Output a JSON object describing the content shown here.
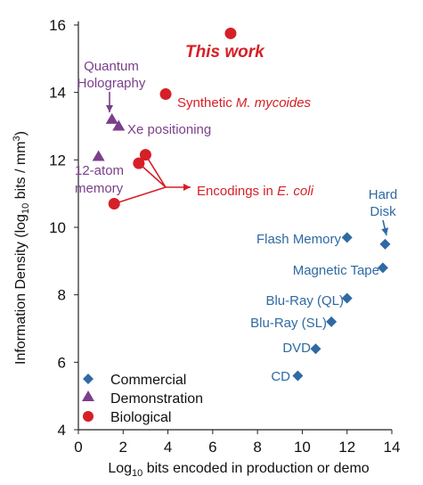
{
  "colors": {
    "commercial": "#2f6aa3",
    "demonstration": "#7b3f8c",
    "biological": "#d61f26"
  },
  "chart_data": {
    "type": "scatter",
    "title": "",
    "xlabel_parts": [
      "Log",
      "10",
      " bits encoded in production or demo"
    ],
    "ylabel_parts": [
      "Information Density (log",
      "10",
      " bits / mm",
      "3",
      ")"
    ],
    "xlim": [
      0,
      14
    ],
    "ylim": [
      4,
      16
    ],
    "xticks": [
      0,
      2,
      4,
      6,
      8,
      10,
      12,
      14
    ],
    "yticks": [
      4,
      6,
      8,
      10,
      12,
      14,
      16
    ],
    "grid": false,
    "legend_position": "bottom-left",
    "legend": [
      {
        "name": "Commercial",
        "marker": "diamond"
      },
      {
        "name": "Demonstration",
        "marker": "triangle"
      },
      {
        "name": "Biological",
        "marker": "circle"
      }
    ],
    "series": [
      {
        "name": "Commercial",
        "marker": "diamond",
        "points": [
          {
            "x": 9.8,
            "y": 5.6,
            "label": "CD"
          },
          {
            "x": 10.6,
            "y": 6.4,
            "label": "DVD"
          },
          {
            "x": 11.3,
            "y": 7.2,
            "label": "Blu-Ray (SL)"
          },
          {
            "x": 12.0,
            "y": 7.9,
            "label": "Blu-Ray (QL)"
          },
          {
            "x": 13.6,
            "y": 8.8,
            "label": "Magnetic Tape"
          },
          {
            "x": 12.0,
            "y": 9.7,
            "label": "Flash Memory"
          },
          {
            "x": 13.7,
            "y": 9.5,
            "label": "Hard Disk"
          }
        ]
      },
      {
        "name": "Demonstration",
        "marker": "triangle",
        "points": [
          {
            "x": 1.5,
            "y": 13.2,
            "label": "Quantum Holography"
          },
          {
            "x": 1.8,
            "y": 13.0,
            "label": "Xe positioning"
          },
          {
            "x": 0.9,
            "y": 12.1,
            "label": "12-atom memory"
          }
        ]
      },
      {
        "name": "Biological",
        "marker": "circle",
        "points": [
          {
            "x": 6.8,
            "y": 15.75,
            "label": "This work"
          },
          {
            "x": 3.9,
            "y": 13.95,
            "label": "Synthetic M. mycoides"
          },
          {
            "x": 3.0,
            "y": 12.15,
            "label": "Encodings in E. coli"
          },
          {
            "x": 2.7,
            "y": 11.9,
            "label": "Encodings in E. coli"
          },
          {
            "x": 1.6,
            "y": 10.7,
            "label": "Encodings in E. coli"
          }
        ]
      }
    ],
    "annotations": {
      "this_work": "This work",
      "mycoides_prefix": "Synthetic ",
      "mycoides_italic": "M. mycoides",
      "xe": "Xe positioning",
      "quantum_line1": "Quantum",
      "quantum_line2": "Holography",
      "atom_line1": "12-atom",
      "atom_line2": "memory",
      "ecoli_prefix": "Encodings in ",
      "ecoli_italic": "E. coli",
      "flash": "Flash Memory",
      "hard_line1": "Hard",
      "hard_line2": "Disk",
      "tape": "Magnetic Tape",
      "blql": "Blu-Ray (QL)",
      "blsl": "Blu-Ray (SL)",
      "dvd": "DVD",
      "cd": "CD"
    }
  }
}
